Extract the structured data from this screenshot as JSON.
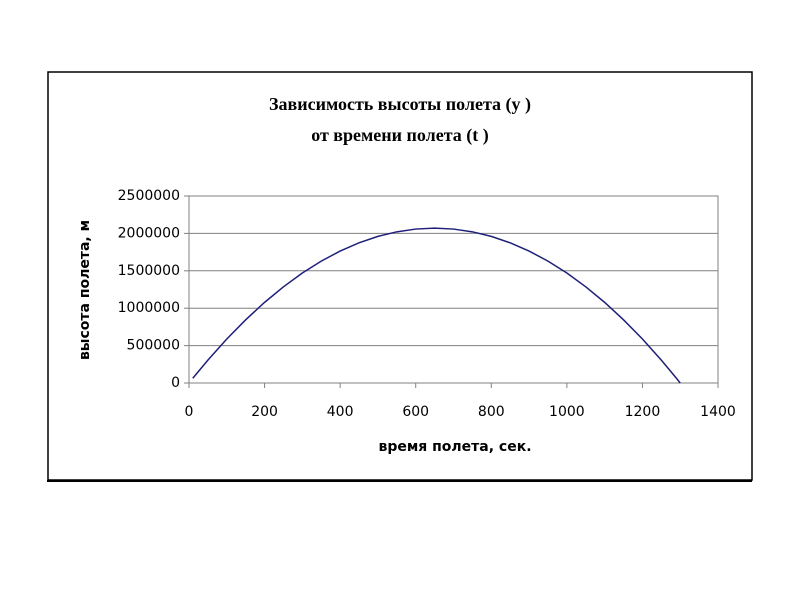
{
  "chart_data": {
    "type": "line",
    "title": [
      "Зависимость высоты полета (y )",
      "от времени полета (t )"
    ],
    "x_label": "время полета, сек.",
    "y_label": "высота полета, м",
    "x": [
      10,
      50,
      100,
      150,
      200,
      250,
      300,
      350,
      400,
      450,
      500,
      550,
      600,
      650,
      700,
      750,
      800,
      850,
      900,
      950,
      1000,
      1050,
      1100,
      1150,
      1200,
      1250,
      1290,
      1300
    ],
    "series": [
      {
        "color": "#1f1f7a",
        "values": [
          63000,
          306000,
          588000,
          845000,
          1078000,
          1286000,
          1470000,
          1629000,
          1764000,
          1874000,
          1960000,
          2021000,
          2058000,
          2070000,
          2058000,
          2021000,
          1960000,
          1874000,
          1764000,
          1629000,
          1470000,
          1286000,
          1078000,
          845000,
          588000,
          306000,
          63000,
          0
        ]
      }
    ],
    "xlim": [
      0,
      1400
    ],
    "xticks": [
      0,
      200,
      400,
      600,
      800,
      1000,
      1200,
      1400
    ],
    "ylim": [
      0,
      2500000
    ],
    "yticks": [
      0,
      500000,
      1000000,
      1500000,
      2000000,
      2500000
    ],
    "grid": true
  }
}
